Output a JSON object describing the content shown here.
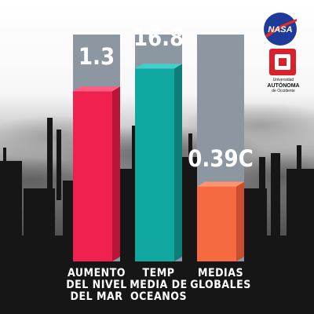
{
  "chart_data": {
    "type": "bar",
    "categories": [
      "AUMENTO DEL NIVEL DEL MAR",
      "TEMP MEDIA DE OCEANOS",
      "MEDIAS GLOBALES"
    ],
    "category_lines": [
      [
        "AUMENTO",
        "DEL NIVEL",
        "DEL MAR"
      ],
      [
        "TEMP",
        "MEDIA DE",
        "OCEANOS"
      ],
      [
        "MEDIAS",
        "GLOBALES"
      ]
    ],
    "values": [
      1.3,
      16.8,
      0.39
    ],
    "value_labels": [
      "1.3",
      "16.8",
      "0.39C"
    ],
    "fill_fractions": [
      0.75,
      0.85,
      0.33
    ],
    "bar_colors": [
      "#f0204f",
      "#12a8a2",
      "#f66a42"
    ],
    "bar_side_colors": [
      "#b81538",
      "#0d7d78",
      "#c94e2d"
    ],
    "bar_top_colors": [
      "#ff5e80",
      "#3fd1c9",
      "#ff946f"
    ],
    "background_bar_color": "#8c97a1",
    "label_color": "#ffffff",
    "title": "",
    "xlabel": "",
    "ylabel": ""
  },
  "logos": {
    "nasa": {
      "text": "NASA",
      "color": "#1f3b99",
      "accent": "#e22c1f"
    },
    "uao": {
      "line1": "Universidad",
      "line2": "AUTÓNOMA",
      "line3": "de Occidente",
      "color": "#d9212b"
    }
  }
}
